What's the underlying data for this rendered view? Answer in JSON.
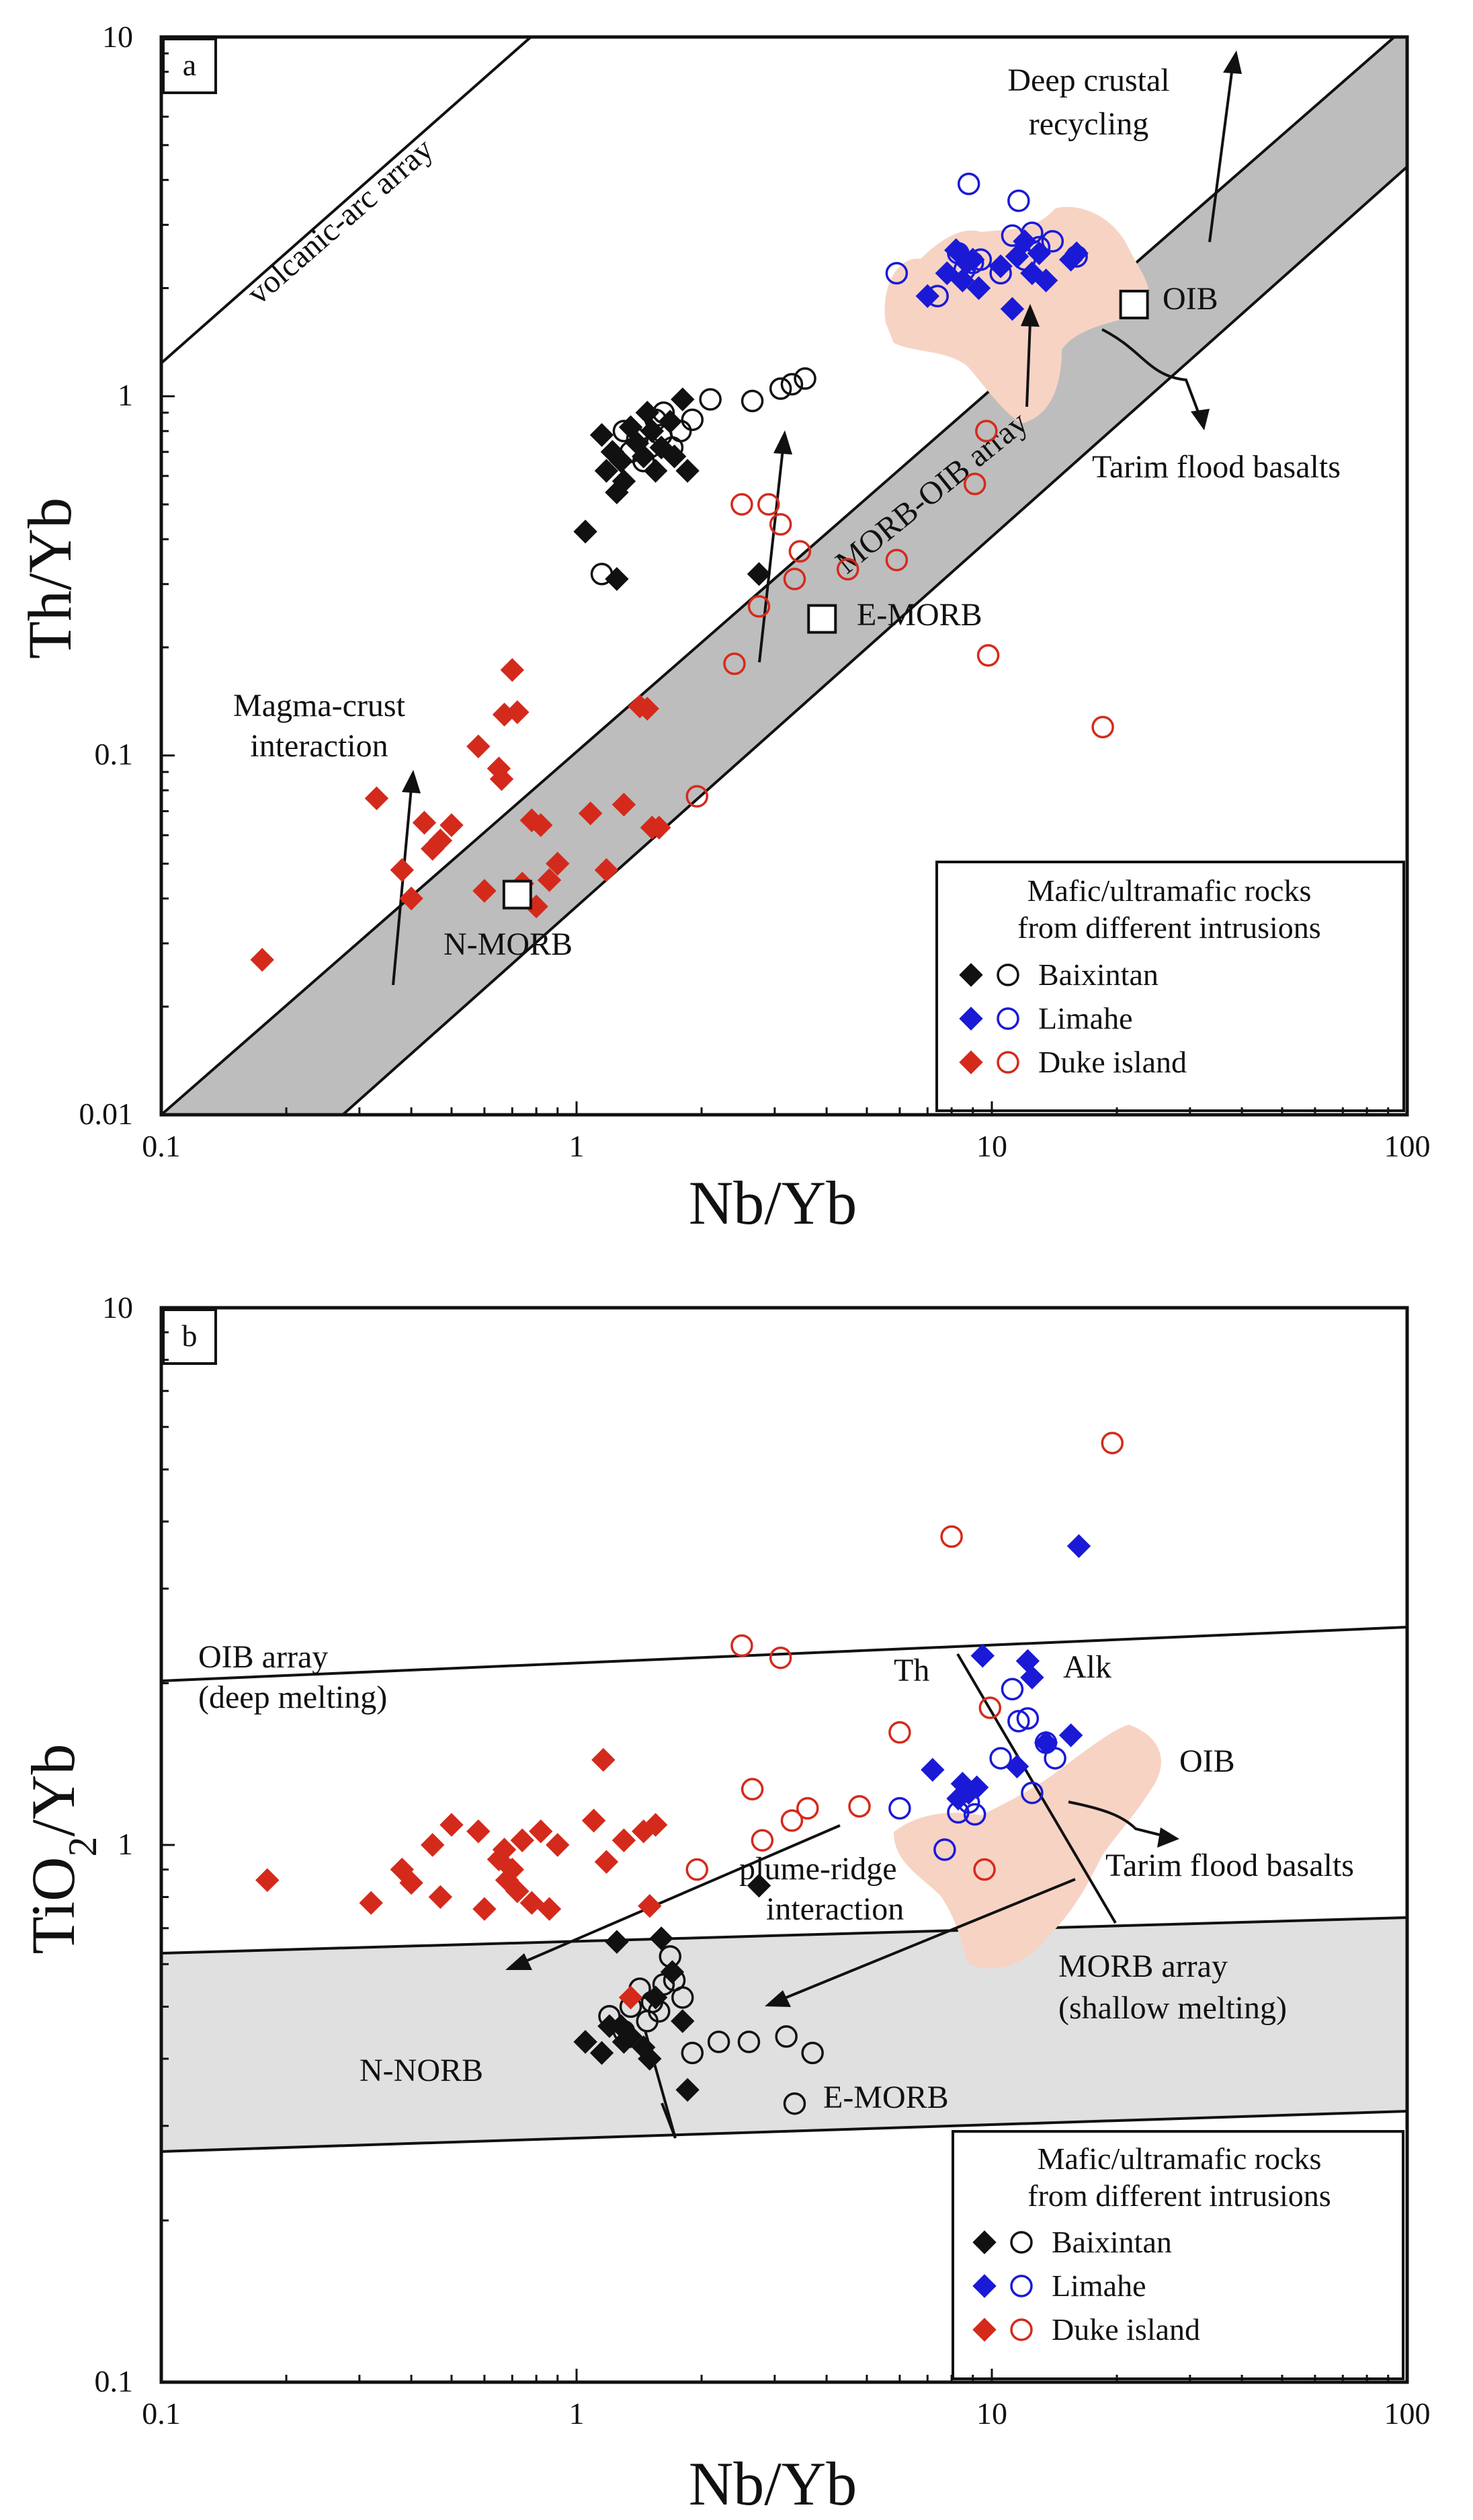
{
  "chart_data": [
    {
      "panel": "a",
      "type": "scatter",
      "x_scale": "log",
      "y_scale": "log",
      "xlabel": "Nb/Yb",
      "ylabel": "Th/Yb",
      "xlim": [
        0.1,
        100
      ],
      "ylim": [
        0.01,
        10
      ],
      "x_ticks": [
        "0.1",
        "1",
        "10",
        "100"
      ],
      "y_ticks": [
        "0.01",
        "0.1",
        "1",
        "10"
      ],
      "references": [
        {
          "name": "N-MORB",
          "x": 0.72,
          "y": 0.041
        },
        {
          "name": "E-MORB",
          "x": 3.9,
          "y": 0.24
        },
        {
          "name": "OIB",
          "x": 22,
          "y": 1.8
        }
      ],
      "annotations": {
        "volcanic_arc": "volcanic-arc array",
        "deep_crustal": [
          "Deep crustal",
          "recycling"
        ],
        "oib_ref": "OIB",
        "tarim": "Tarim flood basalts",
        "morb_oib_array": "MORB-OIB array",
        "emorb_ref": "E-MORB",
        "magma_crust": [
          "Magma-crust",
          "interaction"
        ],
        "nmorb_ref": "N-MORB"
      },
      "legend": {
        "title": [
          "Mafic/ultramafic rocks",
          "from different intrusions"
        ],
        "entries": [
          "Baixintan",
          "Limahe",
          "Duke island"
        ]
      },
      "series": [
        {
          "name": "Baixintan",
          "marker": "diamond",
          "color": "#111111",
          "points": [
            [
              1.05,
              0.42
            ],
            [
              1.15,
              0.78
            ],
            [
              1.18,
              0.62
            ],
            [
              1.22,
              0.7
            ],
            [
              1.25,
              0.54
            ],
            [
              1.28,
              0.66
            ],
            [
              1.3,
              0.58
            ],
            [
              1.35,
              0.82
            ],
            [
              1.4,
              0.74
            ],
            [
              1.45,
              0.68
            ],
            [
              1.48,
              0.9
            ],
            [
              1.52,
              0.8
            ],
            [
              1.55,
              0.62
            ],
            [
              1.6,
              0.72
            ],
            [
              1.68,
              0.85
            ],
            [
              1.72,
              0.68
            ],
            [
              1.8,
              0.98
            ],
            [
              1.85,
              0.62
            ],
            [
              1.25,
              0.31
            ],
            [
              2.75,
              0.32
            ]
          ]
        },
        {
          "name": "Baixintan",
          "marker": "circle",
          "color": "#111111",
          "points": [
            [
              1.15,
              0.32
            ],
            [
              1.3,
              0.8
            ],
            [
              1.35,
              0.7
            ],
            [
              1.4,
              0.76
            ],
            [
              1.45,
              0.66
            ],
            [
              1.5,
              0.72
            ],
            [
              1.55,
              0.86
            ],
            [
              1.6,
              0.78
            ],
            [
              1.62,
              0.9
            ],
            [
              1.7,
              0.72
            ],
            [
              1.78,
              0.8
            ],
            [
              1.9,
              0.86
            ],
            [
              2.1,
              0.98
            ],
            [
              2.65,
              0.97
            ],
            [
              3.1,
              1.05
            ],
            [
              3.3,
              1.08
            ],
            [
              3.55,
              1.12
            ]
          ]
        },
        {
          "name": "Limahe",
          "marker": "diamond",
          "color": "#1a1ad6",
          "points": [
            [
              7.0,
              1.9
            ],
            [
              7.8,
              2.2
            ],
            [
              8.2,
              2.55
            ],
            [
              8.5,
              2.1
            ],
            [
              8.7,
              2.35
            ],
            [
              9.0,
              2.4
            ],
            [
              9.3,
              2.0
            ],
            [
              10.5,
              2.3
            ],
            [
              11.2,
              1.75
            ],
            [
              11.5,
              2.45
            ],
            [
              12.0,
              2.7
            ],
            [
              12.5,
              2.2
            ],
            [
              13.0,
              2.5
            ],
            [
              13.5,
              2.1
            ],
            [
              15.5,
              2.4
            ],
            [
              16.0,
              2.5
            ]
          ]
        },
        {
          "name": "Limahe",
          "marker": "circle",
          "color": "#1a1ad6",
          "points": [
            [
              5.9,
              2.2
            ],
            [
              7.4,
              1.9
            ],
            [
              8.3,
              2.5
            ],
            [
              8.6,
              2.25
            ],
            [
              8.8,
              3.9
            ],
            [
              9.0,
              2.35
            ],
            [
              9.4,
              2.4
            ],
            [
              10.5,
              2.2
            ],
            [
              11.2,
              2.8
            ],
            [
              11.6,
              3.5
            ],
            [
              12.0,
              2.4
            ],
            [
              12.5,
              2.85
            ],
            [
              13.0,
              2.6
            ],
            [
              14.0,
              2.7
            ],
            [
              16.0,
              2.45
            ]
          ]
        },
        {
          "name": "Duke island",
          "marker": "diamond",
          "color": "#d42a1c",
          "points": [
            [
              0.175,
              0.027
            ],
            [
              0.33,
              0.076
            ],
            [
              0.38,
              0.048
            ],
            [
              0.4,
              0.04
            ],
            [
              0.43,
              0.065
            ],
            [
              0.45,
              0.055
            ],
            [
              0.47,
              0.058
            ],
            [
              0.5,
              0.064
            ],
            [
              0.58,
              0.106
            ],
            [
              0.6,
              0.042
            ],
            [
              0.65,
              0.092
            ],
            [
              0.66,
              0.086
            ],
            [
              0.67,
              0.13
            ],
            [
              0.7,
              0.173
            ],
            [
              0.72,
              0.132
            ],
            [
              0.74,
              0.044
            ],
            [
              0.78,
              0.066
            ],
            [
              0.8,
              0.038
            ],
            [
              0.82,
              0.064
            ],
            [
              0.86,
              0.045
            ],
            [
              0.9,
              0.05
            ],
            [
              1.08,
              0.069
            ],
            [
              1.18,
              0.048
            ],
            [
              1.3,
              0.073
            ],
            [
              1.42,
              0.137
            ],
            [
              1.48,
              0.135
            ],
            [
              1.52,
              0.063
            ],
            [
              1.58,
              0.063
            ]
          ]
        },
        {
          "name": "Duke island",
          "marker": "circle",
          "color": "#d42a1c",
          "points": [
            [
              1.95,
              0.077
            ],
            [
              2.4,
              0.18
            ],
            [
              2.5,
              0.5
            ],
            [
              2.75,
              0.26
            ],
            [
              2.9,
              0.5
            ],
            [
              3.1,
              0.44
            ],
            [
              3.35,
              0.31
            ],
            [
              3.45,
              0.37
            ],
            [
              4.5,
              0.33
            ],
            [
              5.9,
              0.35
            ],
            [
              9.7,
              0.8
            ],
            [
              9.8,
              0.19
            ],
            [
              18.5,
              0.12
            ],
            [
              9.1,
              0.57
            ]
          ]
        }
      ]
    },
    {
      "panel": "b",
      "type": "scatter",
      "x_scale": "log",
      "y_scale": "log",
      "xlabel": "Nb/Yb",
      "ylabel": "TiO2/Yb",
      "xlim": [
        0.1,
        100
      ],
      "ylim": [
        0.1,
        10
      ],
      "x_ticks": [
        "0.1",
        "1",
        "10",
        "100"
      ],
      "y_ticks": [
        "0.1",
        "1",
        "10"
      ],
      "annotations": {
        "oib_array": [
          "OIB array",
          "(deep melting)"
        ],
        "th": "Th",
        "alk": "Alk",
        "oib": "OIB",
        "tarim": "Tarim flood basalts",
        "plume_ridge": [
          "plume-ridge",
          "interaction"
        ],
        "morb_array": [
          "MORB array",
          "(shallow melting)"
        ],
        "n_norb": "N-NORB",
        "e_morb": "E-MORB"
      },
      "legend": {
        "title": [
          "Mafic/ultramafic rocks",
          "from different intrusions"
        ],
        "entries": [
          "Baixintan",
          "Limahe",
          "Duke island"
        ]
      },
      "series": [
        {
          "name": "Baixintan",
          "marker": "diamond",
          "color": "#111111",
          "points": [
            [
              1.05,
              0.43
            ],
            [
              1.15,
              0.41
            ],
            [
              1.2,
              0.46
            ],
            [
              1.25,
              0.66
            ],
            [
              1.28,
              0.46
            ],
            [
              1.3,
              0.43
            ],
            [
              1.35,
              0.44
            ],
            [
              1.45,
              0.42
            ],
            [
              1.5,
              0.4
            ],
            [
              1.55,
              0.52
            ],
            [
              1.6,
              0.67
            ],
            [
              1.7,
              0.58
            ],
            [
              1.8,
              0.47
            ],
            [
              1.85,
              0.35
            ],
            [
              2.75,
              0.84
            ]
          ]
        },
        {
          "name": "Baixintan",
          "marker": "circle",
          "color": "#111111",
          "points": [
            [
              1.2,
              0.48
            ],
            [
              1.3,
              0.45
            ],
            [
              1.35,
              0.5
            ],
            [
              1.42,
              0.54
            ],
            [
              1.48,
              0.47
            ],
            [
              1.52,
              0.51
            ],
            [
              1.58,
              0.49
            ],
            [
              1.62,
              0.55
            ],
            [
              1.68,
              0.62
            ],
            [
              1.72,
              0.56
            ],
            [
              1.8,
              0.52
            ],
            [
              1.9,
              0.41
            ],
            [
              2.2,
              0.43
            ],
            [
              2.6,
              0.43
            ],
            [
              3.2,
              0.44
            ],
            [
              3.7,
              0.41
            ],
            [
              3.35,
              0.33
            ]
          ]
        },
        {
          "name": "Limahe",
          "marker": "diamond",
          "color": "#1a1ad6",
          "points": [
            [
              7.2,
              1.38
            ],
            [
              8.3,
              1.22
            ],
            [
              8.5,
              1.3
            ],
            [
              8.8,
              1.25
            ],
            [
              9.2,
              1.28
            ],
            [
              9.5,
              2.25
            ],
            [
              11.5,
              1.4
            ],
            [
              12.2,
              2.2
            ],
            [
              12.5,
              2.05
            ],
            [
              13.5,
              1.55
            ],
            [
              15.5,
              1.6
            ],
            [
              16.2,
              3.6
            ]
          ]
        },
        {
          "name": "Limahe",
          "marker": "circle",
          "color": "#1a1ad6",
          "points": [
            [
              6.0,
              1.17
            ],
            [
              7.7,
              0.98
            ],
            [
              8.3,
              1.15
            ],
            [
              8.8,
              1.2
            ],
            [
              9.1,
              1.14
            ],
            [
              10.5,
              1.45
            ],
            [
              11.2,
              1.95
            ],
            [
              11.6,
              1.7
            ],
            [
              12.2,
              1.72
            ],
            [
              12.5,
              1.25
            ],
            [
              13.5,
              1.55
            ],
            [
              14.2,
              1.45
            ]
          ]
        },
        {
          "name": "Duke island",
          "marker": "diamond",
          "color": "#d42a1c",
          "points": [
            [
              0.18,
              0.86
            ],
            [
              0.32,
              0.78
            ],
            [
              0.38,
              0.9
            ],
            [
              0.4,
              0.85
            ],
            [
              0.45,
              1.0
            ],
            [
              0.47,
              0.8
            ],
            [
              0.5,
              1.09
            ],
            [
              0.58,
              1.06
            ],
            [
              0.6,
              0.76
            ],
            [
              0.65,
              0.94
            ],
            [
              0.67,
              0.98
            ],
            [
              0.68,
              0.86
            ],
            [
              0.7,
              0.9
            ],
            [
              0.72,
              0.82
            ],
            [
              0.74,
              1.02
            ],
            [
              0.78,
              0.78
            ],
            [
              0.82,
              1.06
            ],
            [
              0.86,
              0.76
            ],
            [
              0.9,
              1.0
            ],
            [
              1.1,
              1.11
            ],
            [
              1.16,
              1.44
            ],
            [
              1.18,
              0.93
            ],
            [
              1.3,
              1.02
            ],
            [
              1.35,
              0.52
            ],
            [
              1.45,
              1.06
            ],
            [
              1.5,
              0.77
            ],
            [
              1.55,
              1.09
            ]
          ]
        },
        {
          "name": "Duke island",
          "marker": "circle",
          "color": "#d42a1c",
          "points": [
            [
              1.95,
              0.9
            ],
            [
              2.5,
              2.35
            ],
            [
              2.65,
              1.27
            ],
            [
              2.8,
              1.02
            ],
            [
              3.1,
              2.23
            ],
            [
              3.3,
              1.11
            ],
            [
              3.6,
              1.17
            ],
            [
              4.8,
              1.18
            ],
            [
              6.0,
              1.62
            ],
            [
              8.0,
              3.75
            ],
            [
              9.6,
              0.9
            ],
            [
              9.9,
              1.8
            ],
            [
              19.5,
              5.6
            ]
          ]
        }
      ]
    }
  ]
}
